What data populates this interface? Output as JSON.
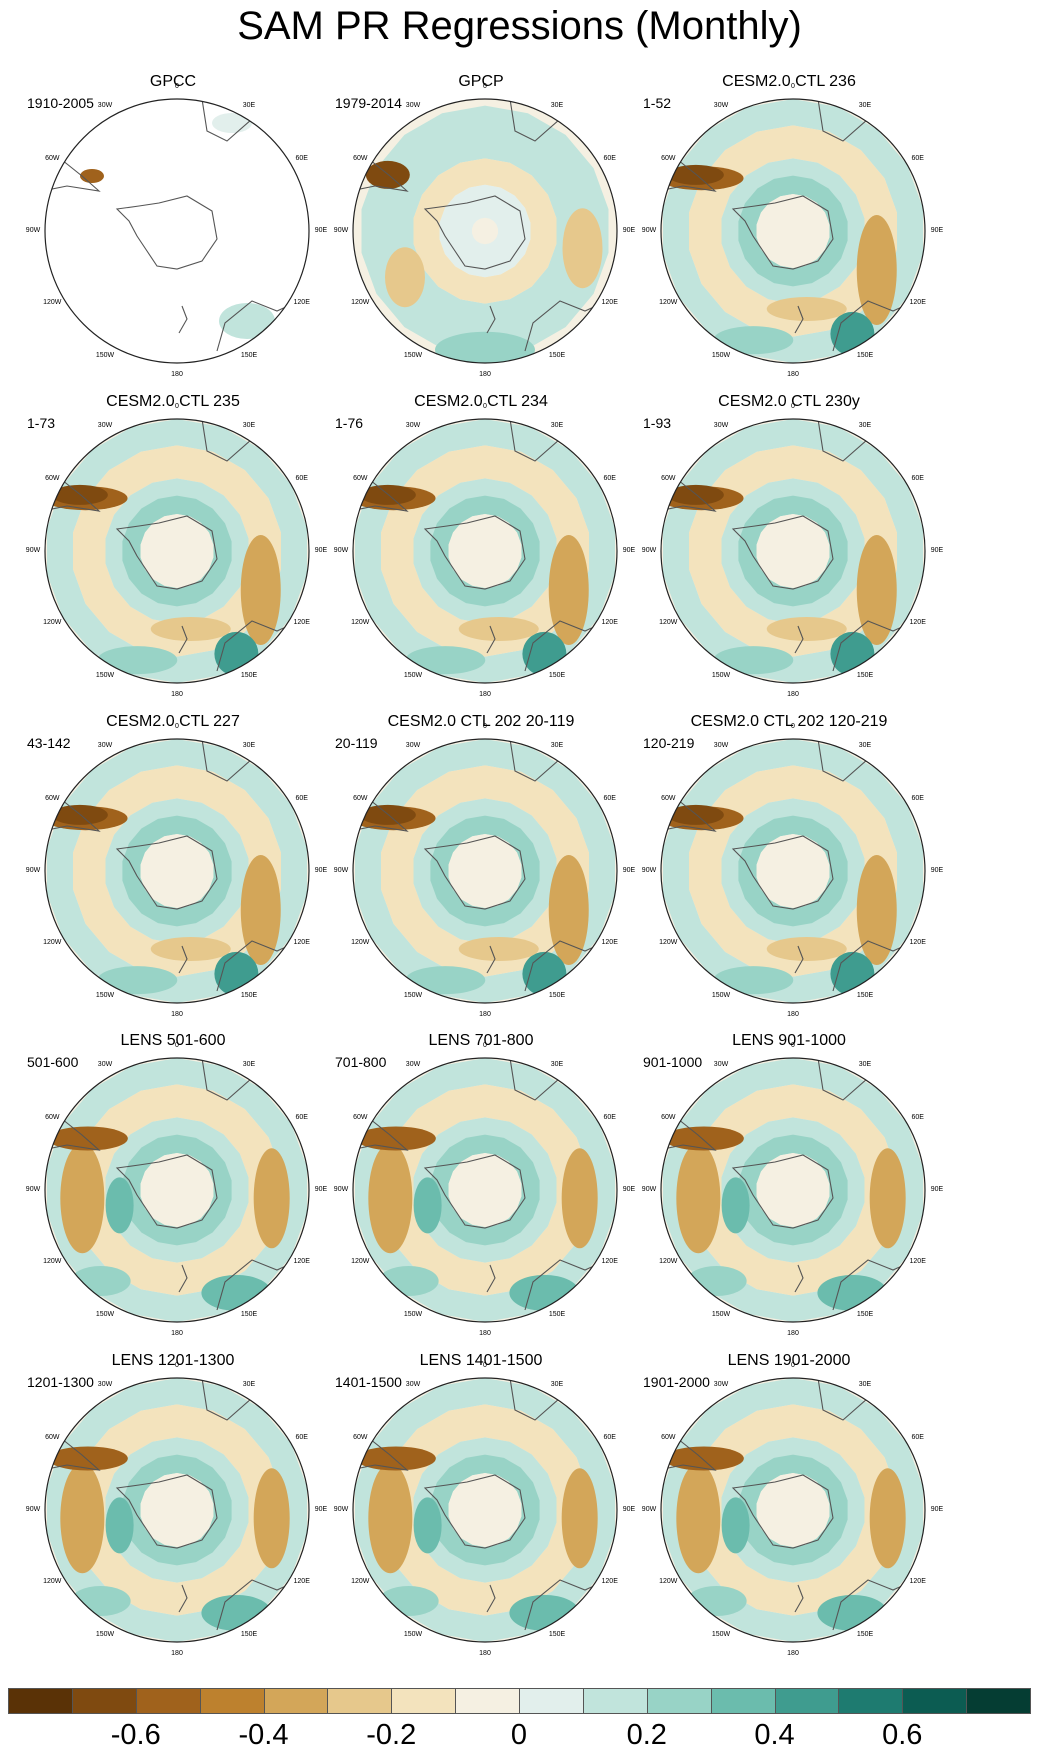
{
  "title": "SAM PR Regressions (Monthly)",
  "longitude_labels": {
    "n0": "0",
    "n30e": "30E",
    "n60e": "60E",
    "n90e": "90E",
    "n120e": "120E",
    "n150e": "150E",
    "n180": "180",
    "n150w": "150W",
    "n120w": "120W",
    "n90w": "90W",
    "n60w": "60W",
    "n30w": "30W"
  },
  "panels": [
    {
      "title": "GPCC",
      "period": "1910-2005",
      "style": "sparse"
    },
    {
      "title": "GPCP",
      "period": "1979-2014",
      "style": "obs"
    },
    {
      "title": "CESM2.0 CTL 236",
      "period": "1-52",
      "style": "ctl"
    },
    {
      "title": "CESM2.0 CTL 235",
      "period": "1-73",
      "style": "ctl"
    },
    {
      "title": "CESM2.0 CTL 234",
      "period": "1-76",
      "style": "ctl"
    },
    {
      "title": "CESM2.0 CTL 230y",
      "period": "1-93",
      "style": "ctl"
    },
    {
      "title": "CESM2.0 CTL 227",
      "period": "43-142",
      "style": "ctl"
    },
    {
      "title": "CESM2.0 CTL 202 20-119",
      "period": "20-119",
      "style": "ctl"
    },
    {
      "title": "CESM2.0 CTL 202 120-219",
      "period": "120-219",
      "style": "ctl"
    },
    {
      "title": "LENS 501-600",
      "period": "501-600",
      "style": "lens"
    },
    {
      "title": "LENS 701-800",
      "period": "701-800",
      "style": "lens"
    },
    {
      "title": "LENS 901-1000",
      "period": "901-1000",
      "style": "lens"
    },
    {
      "title": "LENS 1201-1300",
      "period": "1201-1300",
      "style": "lens"
    },
    {
      "title": "LENS 1401-1500",
      "period": "1401-1500",
      "style": "lens"
    },
    {
      "title": "LENS 1901-2000",
      "period": "1901-2000",
      "style": "lens"
    }
  ],
  "colorbar": {
    "colors": [
      "#5a3206",
      "#7f4a10",
      "#a0621c",
      "#bd812e",
      "#d3a659",
      "#e6c88c",
      "#f3e3bd",
      "#f5f0e2",
      "#e2efec",
      "#c1e4dc",
      "#98d3c6",
      "#6bbcad",
      "#3f9c8f",
      "#1e7b70",
      "#0c5c52",
      "#053d33"
    ],
    "ticks": [
      {
        "label": "-0.6",
        "value": -0.6
      },
      {
        "label": "-0.4",
        "value": -0.4
      },
      {
        "label": "-0.2",
        "value": -0.2
      },
      {
        "label": "0",
        "value": 0
      },
      {
        "label": "0.2",
        "value": 0.2
      },
      {
        "label": "0.4",
        "value": 0.4
      },
      {
        "label": "0.6",
        "value": 0.6
      }
    ],
    "range": [
      -0.8,
      0.8
    ]
  }
}
